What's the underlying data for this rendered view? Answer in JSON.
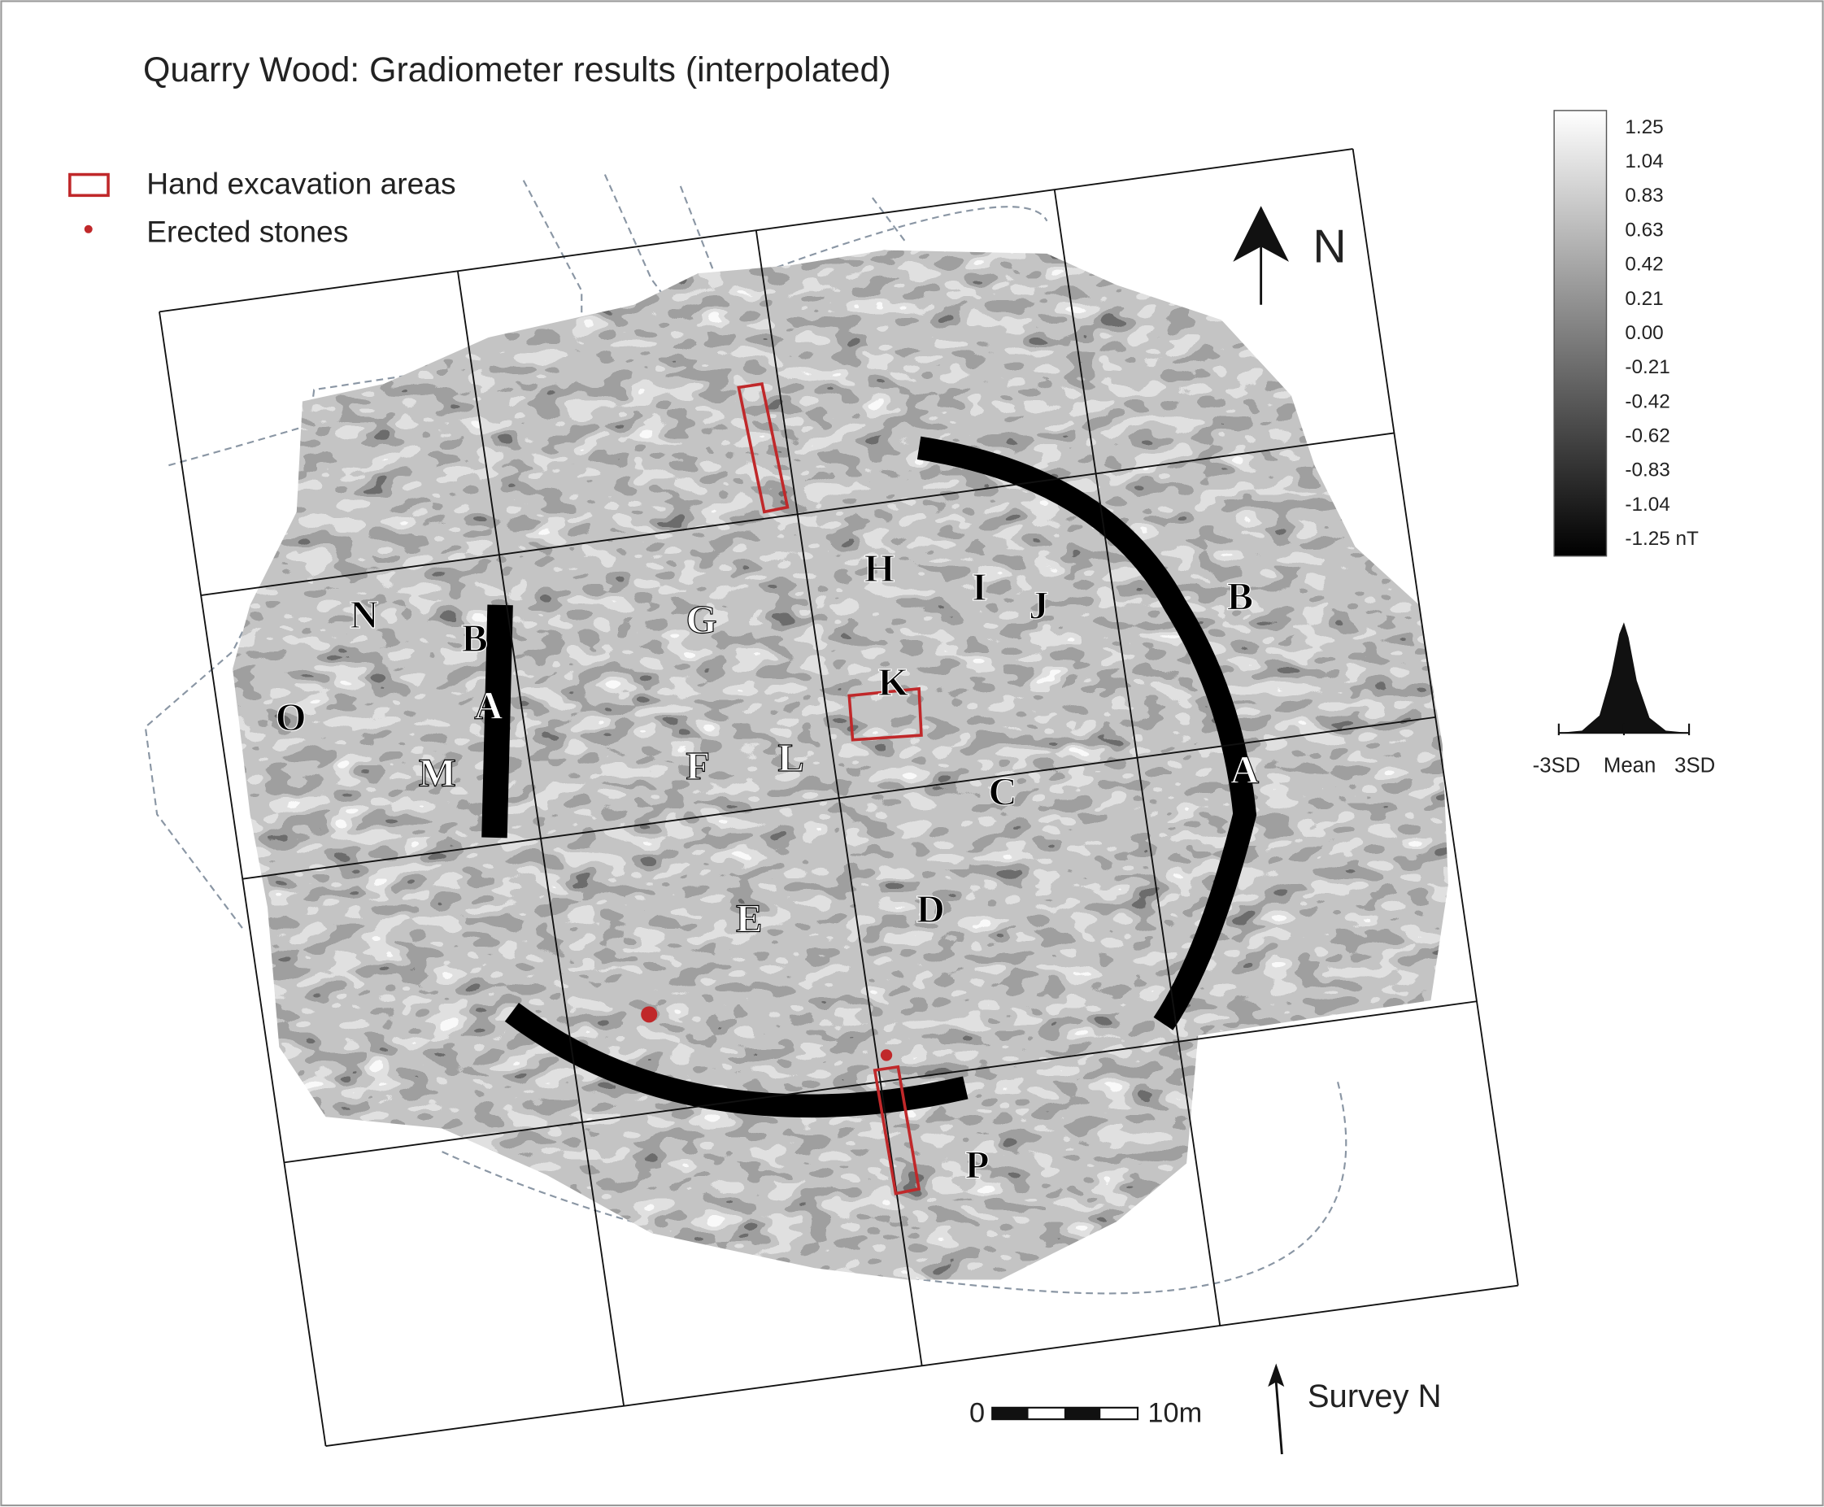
{
  "title": "Quarry Wood: Gradiometer results (interpolated)",
  "legend": [
    {
      "label": "Hand excavation areas"
    },
    {
      "label": "Erected stones"
    }
  ],
  "color_scale": {
    "labels": [
      "1.25",
      "1.04",
      "0.83",
      "0.63",
      "0.42",
      "0.21",
      "0.00",
      "-0.21",
      "-0.42",
      "-0.62",
      "-0.83",
      "-1.04",
      "-1.25  nT"
    ]
  },
  "histogram": {
    "labels": [
      "-3SD",
      "Mean",
      "3SD"
    ]
  },
  "north_arrow": "N",
  "features": [
    "N",
    "B",
    "O",
    "A",
    "M",
    "G",
    "F",
    "L",
    "H",
    "I",
    "J",
    "K",
    "C",
    "E",
    "D",
    "B",
    "A",
    "P"
  ],
  "scale_bar": {
    "labels": [
      "0",
      "10m"
    ]
  },
  "survey_north": "Survey N"
}
